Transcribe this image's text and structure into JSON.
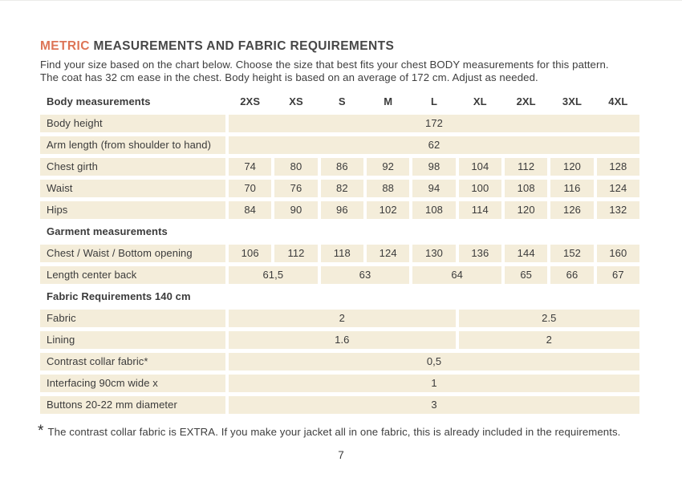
{
  "title": {
    "accent": "METRIC",
    "rest": "MEASUREMENTS AND FABRIC REQUIREMENTS"
  },
  "intro": {
    "line1": "Find your size based on the chart below. Choose the size that best fits your chest BODY measurements for this pattern.",
    "line2": "The coat has 32 cm ease in the chest. Body height is based on an average of 172 cm. Adjust as needed."
  },
  "table": {
    "header_label": "Body measurements",
    "sizes": [
      "2XS",
      "XS",
      "S",
      "M",
      "L",
      "XL",
      "2XL",
      "3XL",
      "4XL"
    ],
    "section_garment": "Garment measurements",
    "section_fabric": "Fabric Requirements 140 cm",
    "rows": [
      {
        "label": "Body height",
        "cells": [
          "172"
        ]
      },
      {
        "label": "Arm length (from shoulder to hand)",
        "cells": [
          "62"
        ]
      },
      {
        "label": "Chest girth",
        "cells": [
          "74",
          "80",
          "86",
          "92",
          "98",
          "104",
          "112",
          "120",
          "128"
        ]
      },
      {
        "label": "Waist",
        "cells": [
          "70",
          "76",
          "82",
          "88",
          "94",
          "100",
          "108",
          "116",
          "124"
        ]
      },
      {
        "label": "Hips",
        "cells": [
          "84",
          "90",
          "96",
          "102",
          "108",
          "114",
          "120",
          "126",
          "132"
        ]
      },
      {
        "label": "Chest / Waist / Bottom opening",
        "cells": [
          "106",
          "112",
          "118",
          "124",
          "130",
          "136",
          "144",
          "152",
          "160"
        ]
      },
      {
        "label": "Length center back",
        "cells": [
          "61,5",
          "63",
          "64",
          "65",
          "66",
          "67"
        ]
      },
      {
        "label": "Fabric",
        "cells": [
          "2",
          "2.5"
        ]
      },
      {
        "label": "Lining",
        "cells": [
          "1.6",
          "2"
        ]
      },
      {
        "label": "Contrast collar fabric*",
        "cells": [
          "0,5"
        ]
      },
      {
        "label": "Interfacing  90cm wide x",
        "cells": [
          "1"
        ]
      },
      {
        "label": "Buttons 20-22 mm diameter",
        "cells": [
          "3"
        ]
      }
    ]
  },
  "footnote": {
    "marker": "*",
    "text": "The contrast collar fabric is EXTRA. If you make your jacket all in one fabric, this is already included in the requirements."
  },
  "page_number": "7",
  "colors": {
    "accent": "#DD7456",
    "cell_bg": "#F4EDDA",
    "text": "#3B3B3B"
  }
}
